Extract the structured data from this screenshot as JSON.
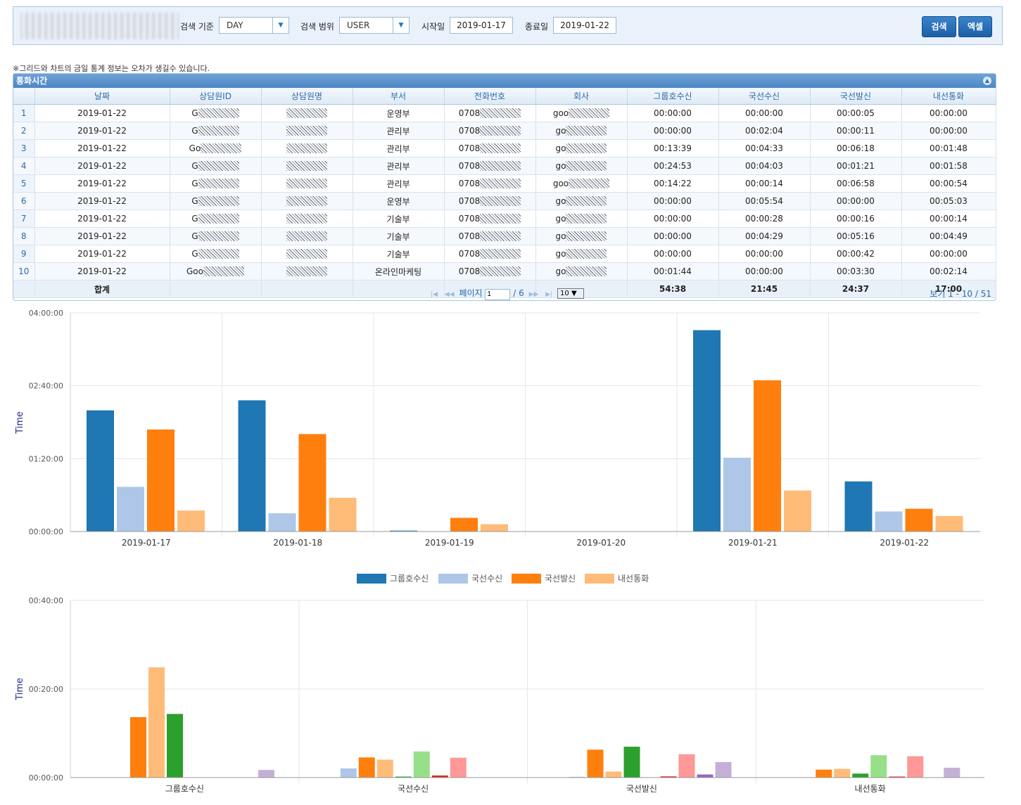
{
  "toolbar": {
    "basis_label": "검색 기준",
    "basis_value": "DAY",
    "scope_label": "검색 범위",
    "scope_value": "USER",
    "start_label": "시작일",
    "start_value": "2019-01-17",
    "end_label": "종료일",
    "end_value": "2019-01-22",
    "search_label": "검색",
    "excel_label": "엑셀"
  },
  "note": "※그리드와 차트의 금일 통계 정보는 오차가 생길수 있습니다.",
  "grid": {
    "caption": "통화시간",
    "columns": [
      "날짜",
      "상담원ID",
      "상담원명",
      "부서",
      "전화번호",
      "회사",
      "그룹호수신",
      "국선수신",
      "국선발신",
      "내선통화"
    ],
    "rows": [
      {
        "n": "1",
        "date": "2019-01-22",
        "id": "G",
        "name": "",
        "dept": "운영부",
        "phone": "0708",
        "company": "goo",
        "c1": "00:00:00",
        "c2": "00:00:00",
        "c3": "00:00:05",
        "c4": "00:00:00"
      },
      {
        "n": "2",
        "date": "2019-01-22",
        "id": "G",
        "name": "",
        "dept": "관리부",
        "phone": "0708",
        "company": "go",
        "c1": "00:00:00",
        "c2": "00:02:04",
        "c3": "00:00:11",
        "c4": "00:00:00"
      },
      {
        "n": "3",
        "date": "2019-01-22",
        "id": "Go",
        "name": "",
        "dept": "관리부",
        "phone": "0708",
        "company": "go",
        "c1": "00:13:39",
        "c2": "00:04:33",
        "c3": "00:06:18",
        "c4": "00:01:48"
      },
      {
        "n": "4",
        "date": "2019-01-22",
        "id": "G",
        "name": "",
        "dept": "관리부",
        "phone": "0708",
        "company": "go",
        "c1": "00:24:53",
        "c2": "00:04:03",
        "c3": "00:01:21",
        "c4": "00:01:58"
      },
      {
        "n": "5",
        "date": "2019-01-22",
        "id": "G",
        "name": "",
        "dept": "관리부",
        "phone": "0708",
        "company": "goo",
        "c1": "00:14:22",
        "c2": "00:00:14",
        "c3": "00:06:58",
        "c4": "00:00:54"
      },
      {
        "n": "6",
        "date": "2019-01-22",
        "id": "G",
        "name": "",
        "dept": "운영부",
        "phone": "0708",
        "company": "go",
        "c1": "00:00:00",
        "c2": "00:05:54",
        "c3": "00:00:00",
        "c4": "00:05:03"
      },
      {
        "n": "7",
        "date": "2019-01-22",
        "id": "G",
        "name": "",
        "dept": "기술부",
        "phone": "0708",
        "company": "go",
        "c1": "00:00:00",
        "c2": "00:00:28",
        "c3": "00:00:16",
        "c4": "00:00:14"
      },
      {
        "n": "8",
        "date": "2019-01-22",
        "id": "G",
        "name": "",
        "dept": "기술부",
        "phone": "0708",
        "company": "go",
        "c1": "00:00:00",
        "c2": "00:04:29",
        "c3": "00:05:16",
        "c4": "00:04:49"
      },
      {
        "n": "9",
        "date": "2019-01-22",
        "id": "G",
        "name": "",
        "dept": "기술부",
        "phone": "0708",
        "company": "go",
        "c1": "00:00:00",
        "c2": "00:00:00",
        "c3": "00:00:42",
        "c4": "00:00:00"
      },
      {
        "n": "10",
        "date": "2019-01-22",
        "id": "Goo",
        "name": "",
        "dept": "온라인마케팅",
        "phone": "0708",
        "company": "go",
        "c1": "00:01:44",
        "c2": "00:00:00",
        "c3": "00:03:30",
        "c4": "00:02:14"
      }
    ],
    "summary": {
      "label": "합계",
      "c1": "54:38",
      "c2": "21:45",
      "c3": "24:37",
      "c4": "17:00"
    },
    "pager": {
      "page_label": "페이지",
      "page_value": "1",
      "total": "/ 6",
      "page_size": "10",
      "info": "보기 1 - 10 / 51"
    }
  },
  "colors": {
    "group": "#1f77b4",
    "inbound": "#aec7e8",
    "outbound": "#ff7f0e",
    "internal": "#ffbb78"
  },
  "chart_data": [
    {
      "type": "bar",
      "ylabel": "Time",
      "y_ticks": [
        "00:00:00",
        "01:20:00",
        "02:40:00",
        "04:00:00"
      ],
      "ylim_minutes": [
        0,
        240
      ],
      "categories": [
        "2019-01-17",
        "2019-01-18",
        "2019-01-19",
        "2019-01-20",
        "2019-01-21",
        "2019-01-22"
      ],
      "series": [
        {
          "name": "그룹호수신",
          "color": "#1f77b4",
          "values_minutes": [
            133,
            144,
            1,
            0,
            221,
            55
          ]
        },
        {
          "name": "국선수신",
          "color": "#aec7e8",
          "values_minutes": [
            49,
            20,
            0,
            0,
            81,
            22
          ]
        },
        {
          "name": "국선발신",
          "color": "#ff7f0e",
          "values_minutes": [
            112,
            107,
            15,
            0,
            166,
            25
          ]
        },
        {
          "name": "내선통화",
          "color": "#ffbb78",
          "values_minutes": [
            23,
            37,
            8,
            0,
            45,
            17
          ]
        }
      ],
      "legend_position": "bottom"
    },
    {
      "type": "bar",
      "ylabel": "Time",
      "y_ticks": [
        "00:00:00",
        "00:20:00",
        "00:40:00"
      ],
      "ylim_minutes": [
        0,
        40
      ],
      "categories": [
        "그룹호수신",
        "국선수신",
        "국선발신",
        "내선통화"
      ],
      "series_colors": [
        "#1f77b4",
        "#aec7e8",
        "#ff7f0e",
        "#ffbb78",
        "#2ca02c",
        "#98df8a",
        "#d62728",
        "#ff9896",
        "#9467bd",
        "#c5b0d5"
      ],
      "values_minutes": [
        [
          0,
          0,
          13.65,
          24.88,
          14.37,
          0,
          0,
          0,
          0,
          1.73
        ],
        [
          0,
          2.07,
          4.55,
          4.05,
          0.23,
          5.9,
          0.47,
          4.48,
          0,
          0
        ],
        [
          0.08,
          0.18,
          6.3,
          1.35,
          6.97,
          0,
          0.27,
          5.27,
          0.7,
          3.5
        ],
        [
          0,
          0,
          1.8,
          1.97,
          0.9,
          5.05,
          0.23,
          4.82,
          0,
          2.23
        ]
      ]
    }
  ]
}
